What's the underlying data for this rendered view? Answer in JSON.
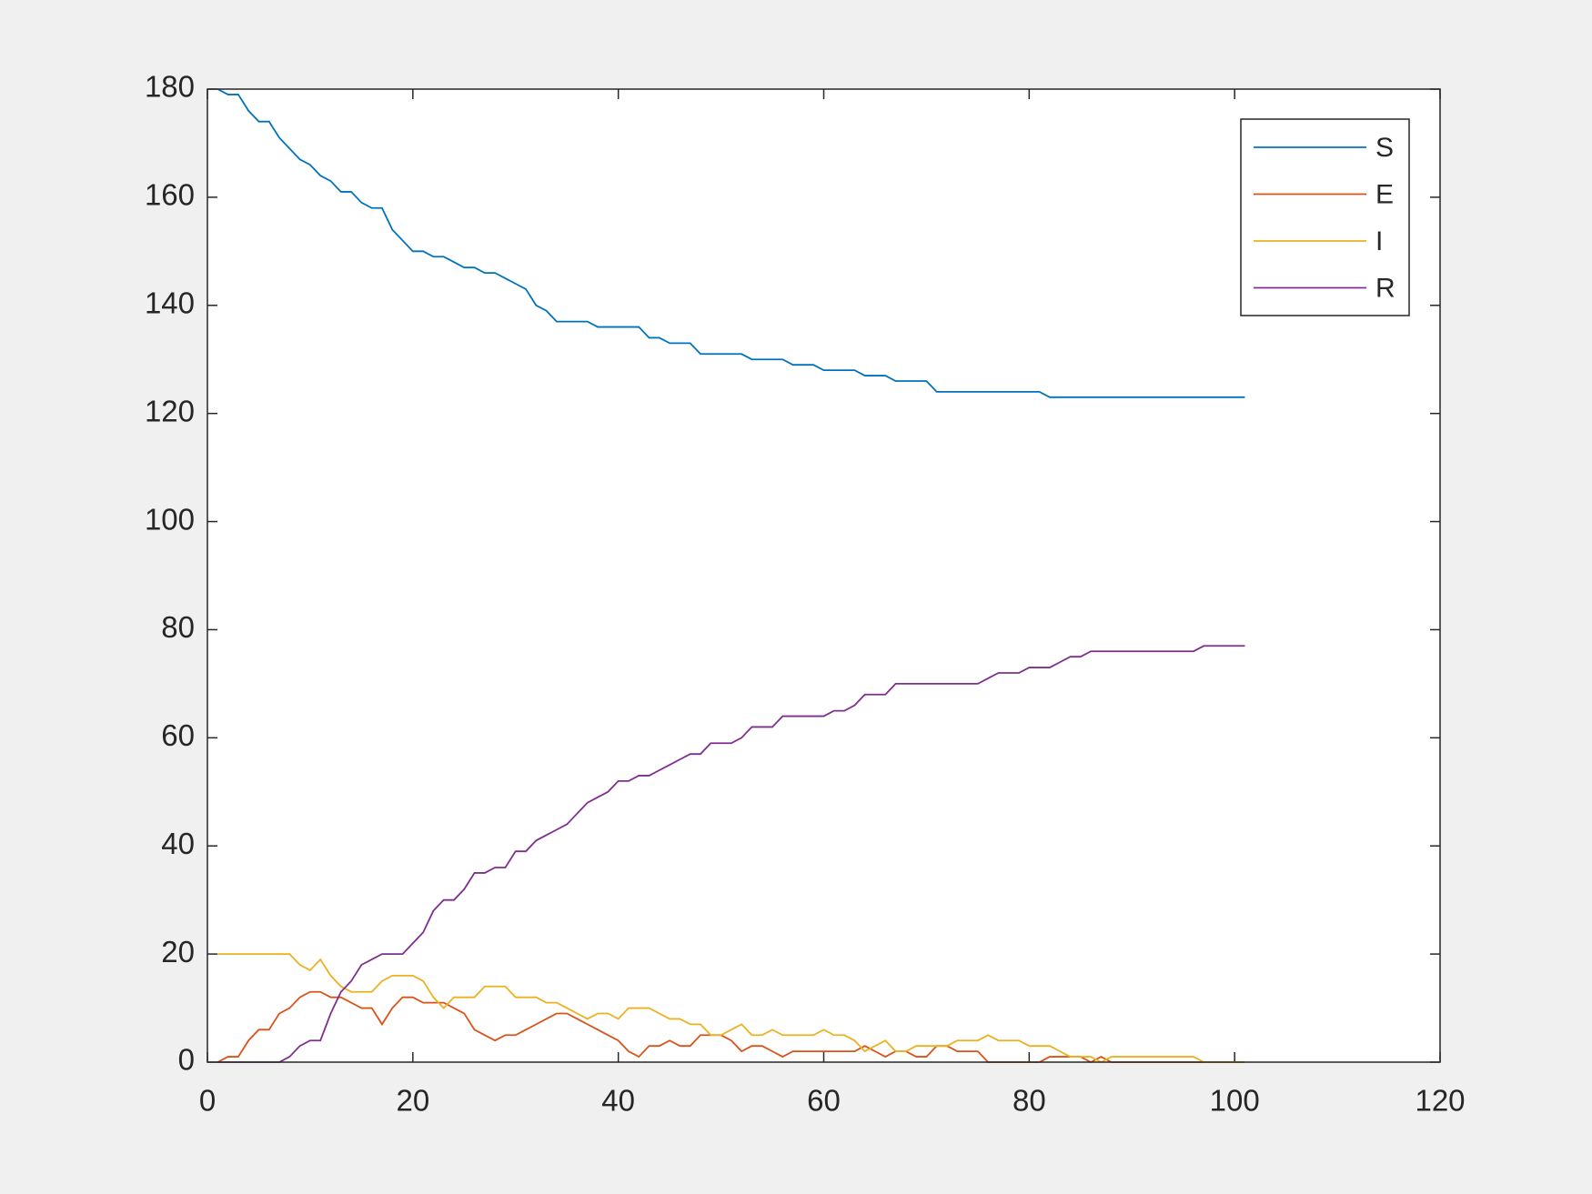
{
  "chart_data": {
    "type": "line",
    "x": [
      1,
      2,
      3,
      4,
      5,
      6,
      7,
      8,
      9,
      10,
      11,
      12,
      13,
      14,
      15,
      16,
      17,
      18,
      19,
      20,
      21,
      22,
      23,
      24,
      25,
      26,
      27,
      28,
      29,
      30,
      31,
      32,
      33,
      34,
      35,
      36,
      37,
      38,
      39,
      40,
      41,
      42,
      43,
      44,
      45,
      46,
      47,
      48,
      49,
      50,
      51,
      52,
      53,
      54,
      55,
      56,
      57,
      58,
      59,
      60,
      61,
      62,
      63,
      64,
      65,
      66,
      67,
      68,
      69,
      70,
      71,
      72,
      73,
      74,
      75,
      76,
      77,
      78,
      79,
      80,
      81,
      82,
      83,
      84,
      85,
      86,
      87,
      88,
      89,
      90,
      91,
      92,
      93,
      94,
      95,
      96,
      97,
      98,
      99,
      100,
      101
    ],
    "series": [
      {
        "name": "S",
        "color": "#0072BD",
        "values": [
          180,
          179,
          179,
          176,
          174,
          174,
          171,
          169,
          167,
          166,
          164,
          163,
          161,
          161,
          159,
          158,
          158,
          154,
          152,
          150,
          150,
          149,
          149,
          148,
          147,
          147,
          146,
          146,
          145,
          144,
          143,
          140,
          139,
          137,
          137,
          137,
          137,
          136,
          136,
          136,
          136,
          136,
          134,
          134,
          133,
          133,
          133,
          131,
          131,
          131,
          131,
          131,
          130,
          130,
          130,
          130,
          129,
          129,
          129,
          128,
          128,
          128,
          128,
          127,
          127,
          127,
          126,
          126,
          126,
          126,
          124,
          124,
          124,
          124,
          124,
          124,
          124,
          124,
          124,
          124,
          124,
          123,
          123,
          123,
          123,
          123,
          123,
          123,
          123,
          123,
          123,
          123,
          123,
          123,
          123,
          123,
          123,
          123,
          123,
          123,
          123
        ]
      },
      {
        "name": "E",
        "color": "#D95319",
        "values": [
          0,
          1,
          1,
          4,
          6,
          6,
          9,
          10,
          12,
          13,
          13,
          12,
          12,
          11,
          10,
          10,
          7,
          10,
          12,
          12,
          11,
          11,
          11,
          10,
          9,
          6,
          5,
          4,
          5,
          5,
          6,
          7,
          8,
          9,
          9,
          8,
          7,
          6,
          5,
          4,
          2,
          1,
          3,
          3,
          4,
          3,
          3,
          5,
          5,
          5,
          4,
          2,
          3,
          3,
          2,
          1,
          2,
          2,
          2,
          2,
          2,
          2,
          2,
          3,
          2,
          1,
          2,
          2,
          1,
          1,
          3,
          3,
          2,
          2,
          2,
          0,
          0,
          0,
          0,
          0,
          0,
          1,
          1,
          1,
          1,
          0,
          1,
          0,
          0,
          0,
          0,
          0,
          0,
          0,
          0,
          0,
          0,
          0,
          0,
          0,
          0
        ]
      },
      {
        "name": "I",
        "color": "#EDB120",
        "values": [
          20,
          20,
          20,
          20,
          20,
          20,
          20,
          20,
          18,
          17,
          19,
          16,
          14,
          13,
          13,
          13,
          15,
          16,
          16,
          16,
          15,
          12,
          10,
          12,
          12,
          12,
          14,
          14,
          14,
          12,
          12,
          12,
          11,
          11,
          10,
          9,
          8,
          9,
          9,
          8,
          10,
          10,
          10,
          9,
          8,
          8,
          7,
          7,
          5,
          5,
          6,
          7,
          5,
          5,
          6,
          5,
          5,
          5,
          5,
          6,
          5,
          5,
          4,
          2,
          3,
          4,
          2,
          2,
          3,
          3,
          3,
          3,
          4,
          4,
          4,
          5,
          4,
          4,
          4,
          3,
          3,
          3,
          2,
          1,
          1,
          1,
          0,
          1,
          1,
          1,
          1,
          1,
          1,
          1,
          1,
          1,
          0,
          0,
          0,
          0,
          0
        ]
      },
      {
        "name": "R",
        "color": "#7E2F8E",
        "values": [
          0,
          0,
          0,
          0,
          0,
          0,
          0,
          1,
          3,
          4,
          4,
          9,
          13,
          15,
          18,
          19,
          20,
          20,
          20,
          22,
          24,
          28,
          30,
          30,
          32,
          35,
          35,
          36,
          36,
          39,
          39,
          41,
          42,
          43,
          44,
          46,
          48,
          49,
          50,
          52,
          52,
          53,
          53,
          54,
          55,
          56,
          57,
          57,
          59,
          59,
          59,
          60,
          62,
          62,
          62,
          64,
          64,
          64,
          64,
          64,
          65,
          65,
          66,
          68,
          68,
          68,
          70,
          70,
          70,
          70,
          70,
          70,
          70,
          70,
          70,
          71,
          72,
          72,
          72,
          73,
          73,
          73,
          74,
          75,
          75,
          76,
          76,
          76,
          76,
          76,
          76,
          76,
          76,
          76,
          76,
          76,
          77,
          77,
          77,
          77,
          77
        ]
      }
    ],
    "xlim": [
      0,
      120
    ],
    "xticks": [
      0,
      20,
      40,
      60,
      80,
      100,
      120
    ],
    "ylim": [
      0,
      180
    ],
    "yticks": [
      0,
      20,
      40,
      60,
      80,
      100,
      120,
      140,
      160,
      180
    ],
    "grid": false,
    "legend": "northeast"
  }
}
